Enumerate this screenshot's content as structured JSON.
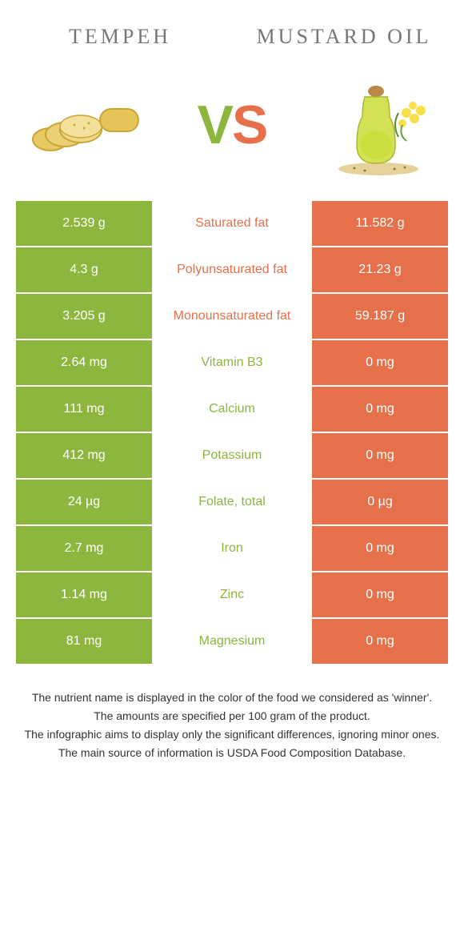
{
  "header": {
    "left_title": "Tempeh",
    "right_title": "Mustard Oil",
    "vs_v": "V",
    "vs_s": "S"
  },
  "colors": {
    "left": "#8cb63e",
    "right": "#e6704a",
    "bg": "#ffffff",
    "title": "#777777",
    "text": "#333333"
  },
  "rows": [
    {
      "left": "2.539 g",
      "label": "Saturated fat",
      "right": "11.582 g",
      "winner": "right"
    },
    {
      "left": "4.3 g",
      "label": "Polyunsaturated fat",
      "right": "21.23 g",
      "winner": "right"
    },
    {
      "left": "3.205 g",
      "label": "Monounsaturated fat",
      "right": "59.187 g",
      "winner": "right"
    },
    {
      "left": "2.64 mg",
      "label": "Vitamin B3",
      "right": "0 mg",
      "winner": "left"
    },
    {
      "left": "111 mg",
      "label": "Calcium",
      "right": "0 mg",
      "winner": "left"
    },
    {
      "left": "412 mg",
      "label": "Potassium",
      "right": "0 mg",
      "winner": "left"
    },
    {
      "left": "24 µg",
      "label": "Folate, total",
      "right": "0 µg",
      "winner": "left"
    },
    {
      "left": "2.7 mg",
      "label": "Iron",
      "right": "0 mg",
      "winner": "left"
    },
    {
      "left": "1.14 mg",
      "label": "Zinc",
      "right": "0 mg",
      "winner": "left"
    },
    {
      "left": "81 mg",
      "label": "Magnesium",
      "right": "0 mg",
      "winner": "left"
    }
  ],
  "footnotes": [
    "The nutrient name is displayed in the color of the food we considered as 'winner'.",
    "The amounts are specified per 100 gram of the product.",
    "The infographic aims to display only the significant differences, ignoring minor ones.",
    "The main source of information is USDA Food Composition Database."
  ]
}
